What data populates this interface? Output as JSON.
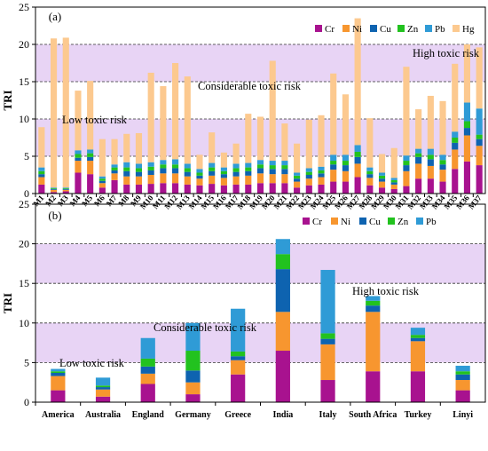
{
  "colors": {
    "Cr": "#a8128f",
    "Ni": "#f7962f",
    "Cu": "#0e63b0",
    "Zn": "#22c21f",
    "Pb": "#2f9bd6",
    "Hg": "#fcc98f",
    "band": "#e8d4f5"
  },
  "chart_data": [
    {
      "type": "bar",
      "stacked": true,
      "panel_label": "(a)",
      "ylabel": "TRI",
      "ylim": [
        0,
        25
      ],
      "yticks": [
        0,
        5,
        10,
        15,
        20,
        25
      ],
      "grid": false,
      "legend_position": "top-right",
      "bands": [
        {
          "from": 5,
          "to": 10,
          "label": "Low toxic risk"
        },
        {
          "from": 15,
          "to": 20,
          "label": "High toxic risk"
        }
      ],
      "band_label_middle": "Considerable toxic risk",
      "categories": [
        "M1",
        "M2",
        "M3",
        "M4",
        "M5",
        "M6",
        "M7",
        "M8",
        "M9",
        "M10",
        "M11",
        "M12",
        "M13",
        "M14",
        "M15",
        "M16",
        "M17",
        "M18",
        "M19",
        "M20",
        "M21",
        "M22",
        "M23",
        "M24",
        "M25",
        "M26",
        "M27",
        "M28",
        "M29",
        "M30",
        "M31",
        "M32",
        "M33",
        "M34",
        "M35",
        "M36",
        "M37"
      ],
      "series": [
        {
          "name": "Cr",
          "values": [
            1.2,
            0.2,
            0.3,
            2.8,
            2.6,
            0.8,
            1.8,
            1.2,
            1.2,
            1.3,
            1.4,
            1.4,
            1.2,
            1.1,
            1.3,
            1.1,
            1.2,
            1.2,
            1.4,
            1.4,
            1.4,
            0.8,
            1.1,
            1.2,
            1.6,
            1.6,
            2.2,
            1.1,
            0.8,
            0.6,
            1.0,
            2.0,
            2.0,
            1.6,
            3.3,
            4.3,
            3.8
          ]
        },
        {
          "name": "Ni",
          "values": [
            1.0,
            0.3,
            0.2,
            1.6,
            1.8,
            0.6,
            0.9,
            1.1,
            1.1,
            1.2,
            1.3,
            1.3,
            1.1,
            0.9,
            1.1,
            1.0,
            1.1,
            1.2,
            1.3,
            1.2,
            1.2,
            0.8,
            0.9,
            1.0,
            1.6,
            1.4,
            1.8,
            1.0,
            0.8,
            0.6,
            2.0,
            2.0,
            1.7,
            1.6,
            2.6,
            3.5,
            2.6
          ]
        },
        {
          "name": "Cu",
          "values": [
            0.4,
            0.1,
            0.1,
            0.4,
            0.5,
            0.3,
            0.4,
            0.7,
            0.6,
            0.6,
            0.7,
            0.7,
            0.6,
            0.4,
            0.6,
            0.5,
            0.6,
            0.6,
            0.7,
            0.7,
            0.7,
            0.4,
            0.5,
            0.5,
            0.7,
            0.8,
            0.9,
            0.5,
            0.4,
            0.3,
            0.8,
            0.9,
            0.9,
            0.7,
            0.9,
            1.0,
            0.9
          ]
        },
        {
          "name": "Zn",
          "values": [
            0.4,
            0.1,
            0.1,
            0.5,
            0.5,
            0.3,
            0.4,
            0.5,
            0.5,
            0.5,
            0.5,
            0.5,
            0.5,
            0.4,
            0.5,
            0.4,
            0.5,
            0.5,
            0.5,
            0.5,
            0.5,
            0.4,
            0.4,
            0.4,
            0.5,
            0.6,
            0.7,
            0.4,
            0.4,
            0.3,
            0.6,
            0.5,
            0.6,
            0.6,
            0.7,
            0.9,
            0.6
          ]
        },
        {
          "name": "Pb",
          "values": [
            0.5,
            0.1,
            0.1,
            0.5,
            0.5,
            0.3,
            0.4,
            0.7,
            0.6,
            0.6,
            0.6,
            0.7,
            0.6,
            0.5,
            0.6,
            0.5,
            0.6,
            0.6,
            0.6,
            0.6,
            0.6,
            0.4,
            0.5,
            0.5,
            0.8,
            0.8,
            0.9,
            0.5,
            0.4,
            0.3,
            0.7,
            0.6,
            0.8,
            0.7,
            0.8,
            2.5,
            3.5
          ]
        },
        {
          "name": "Hg",
          "values": [
            5.4,
            20.0,
            20.1,
            8.0,
            9.2,
            5.0,
            3.4,
            3.8,
            4.1,
            12.0,
            9.9,
            12.9,
            11.7,
            1.9,
            4.1,
            2.0,
            2.7,
            6.6,
            5.8,
            13.4,
            5.0,
            3.9,
            6.5,
            6.9,
            10.9,
            8.1,
            17.0,
            6.6,
            2.5,
            4.0,
            11.9,
            5.3,
            7.1,
            7.2,
            9.1,
            7.8,
            8.2
          ]
        }
      ]
    },
    {
      "type": "bar",
      "stacked": true,
      "panel_label": "(b)",
      "ylabel": "TRI",
      "ylim": [
        0,
        25
      ],
      "yticks": [
        0,
        5,
        10,
        15,
        20,
        25
      ],
      "grid": false,
      "legend_position": "top-right",
      "bands": [
        {
          "from": 5,
          "to": 10,
          "label": "Low toxic risk"
        },
        {
          "from": 15,
          "to": 20,
          "label": "High toxic risk"
        }
      ],
      "band_label_middle": "Considerable toxic risk",
      "categories": [
        "America",
        "Australia",
        "England",
        "Germany",
        "Greece",
        "India",
        "Italy",
        "South Africa",
        "Turkey",
        "Linyi"
      ],
      "series": [
        {
          "name": "Cr",
          "values": [
            1.5,
            0.7,
            2.3,
            1.0,
            3.5,
            6.5,
            2.8,
            3.9,
            3.9,
            1.5
          ]
        },
        {
          "name": "Ni",
          "values": [
            1.8,
            0.9,
            1.3,
            1.5,
            1.8,
            4.9,
            4.5,
            7.5,
            3.8,
            1.3
          ]
        },
        {
          "name": "Cu",
          "values": [
            0.4,
            0.3,
            0.9,
            1.5,
            0.5,
            5.4,
            0.7,
            0.8,
            0.4,
            0.7
          ]
        },
        {
          "name": "Zn",
          "values": [
            0.2,
            0.2,
            1.0,
            2.5,
            0.6,
            1.9,
            0.7,
            0.6,
            0.4,
            0.4
          ]
        },
        {
          "name": "Pb",
          "values": [
            0.3,
            1.0,
            2.6,
            3.5,
            5.4,
            1.9,
            8.0,
            0.6,
            0.9,
            0.7
          ]
        }
      ]
    }
  ]
}
